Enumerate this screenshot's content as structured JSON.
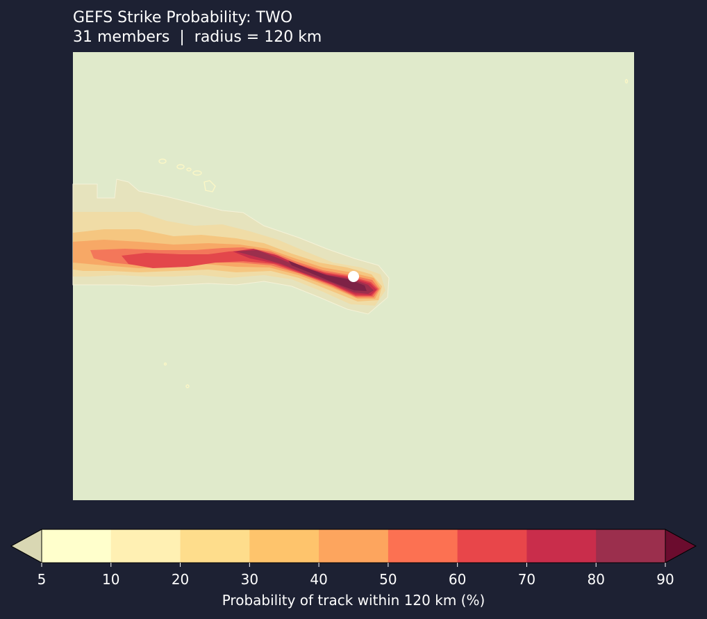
{
  "header": {
    "title_line1": "GEFS Strike Probability: TWO",
    "title_line2": "31 members  |  radius = 120 km"
  },
  "map": {
    "background_color": "#e0eacb",
    "coast_color": "#fbf7c6",
    "storm_marker_color": "#ffffff",
    "members": 31,
    "radius_km": 120
  },
  "colorbar": {
    "label": "Probability of track within 120 km (%)",
    "levels": [
      5,
      10,
      20,
      30,
      40,
      50,
      60,
      70,
      80,
      90
    ],
    "tick_labels": [
      "5",
      "10",
      "20",
      "30",
      "40",
      "50",
      "60",
      "70",
      "80",
      "90"
    ],
    "colors": [
      "#ffffcc",
      "#fff0b3",
      "#fedd8c",
      "#fec46c",
      "#fda55e",
      "#fc7152",
      "#e8464a",
      "#c92d4b",
      "#9b2f4d"
    ],
    "under_color": "#d9d7b3",
    "over_color": "#6b0c2e",
    "extend": "both"
  }
}
